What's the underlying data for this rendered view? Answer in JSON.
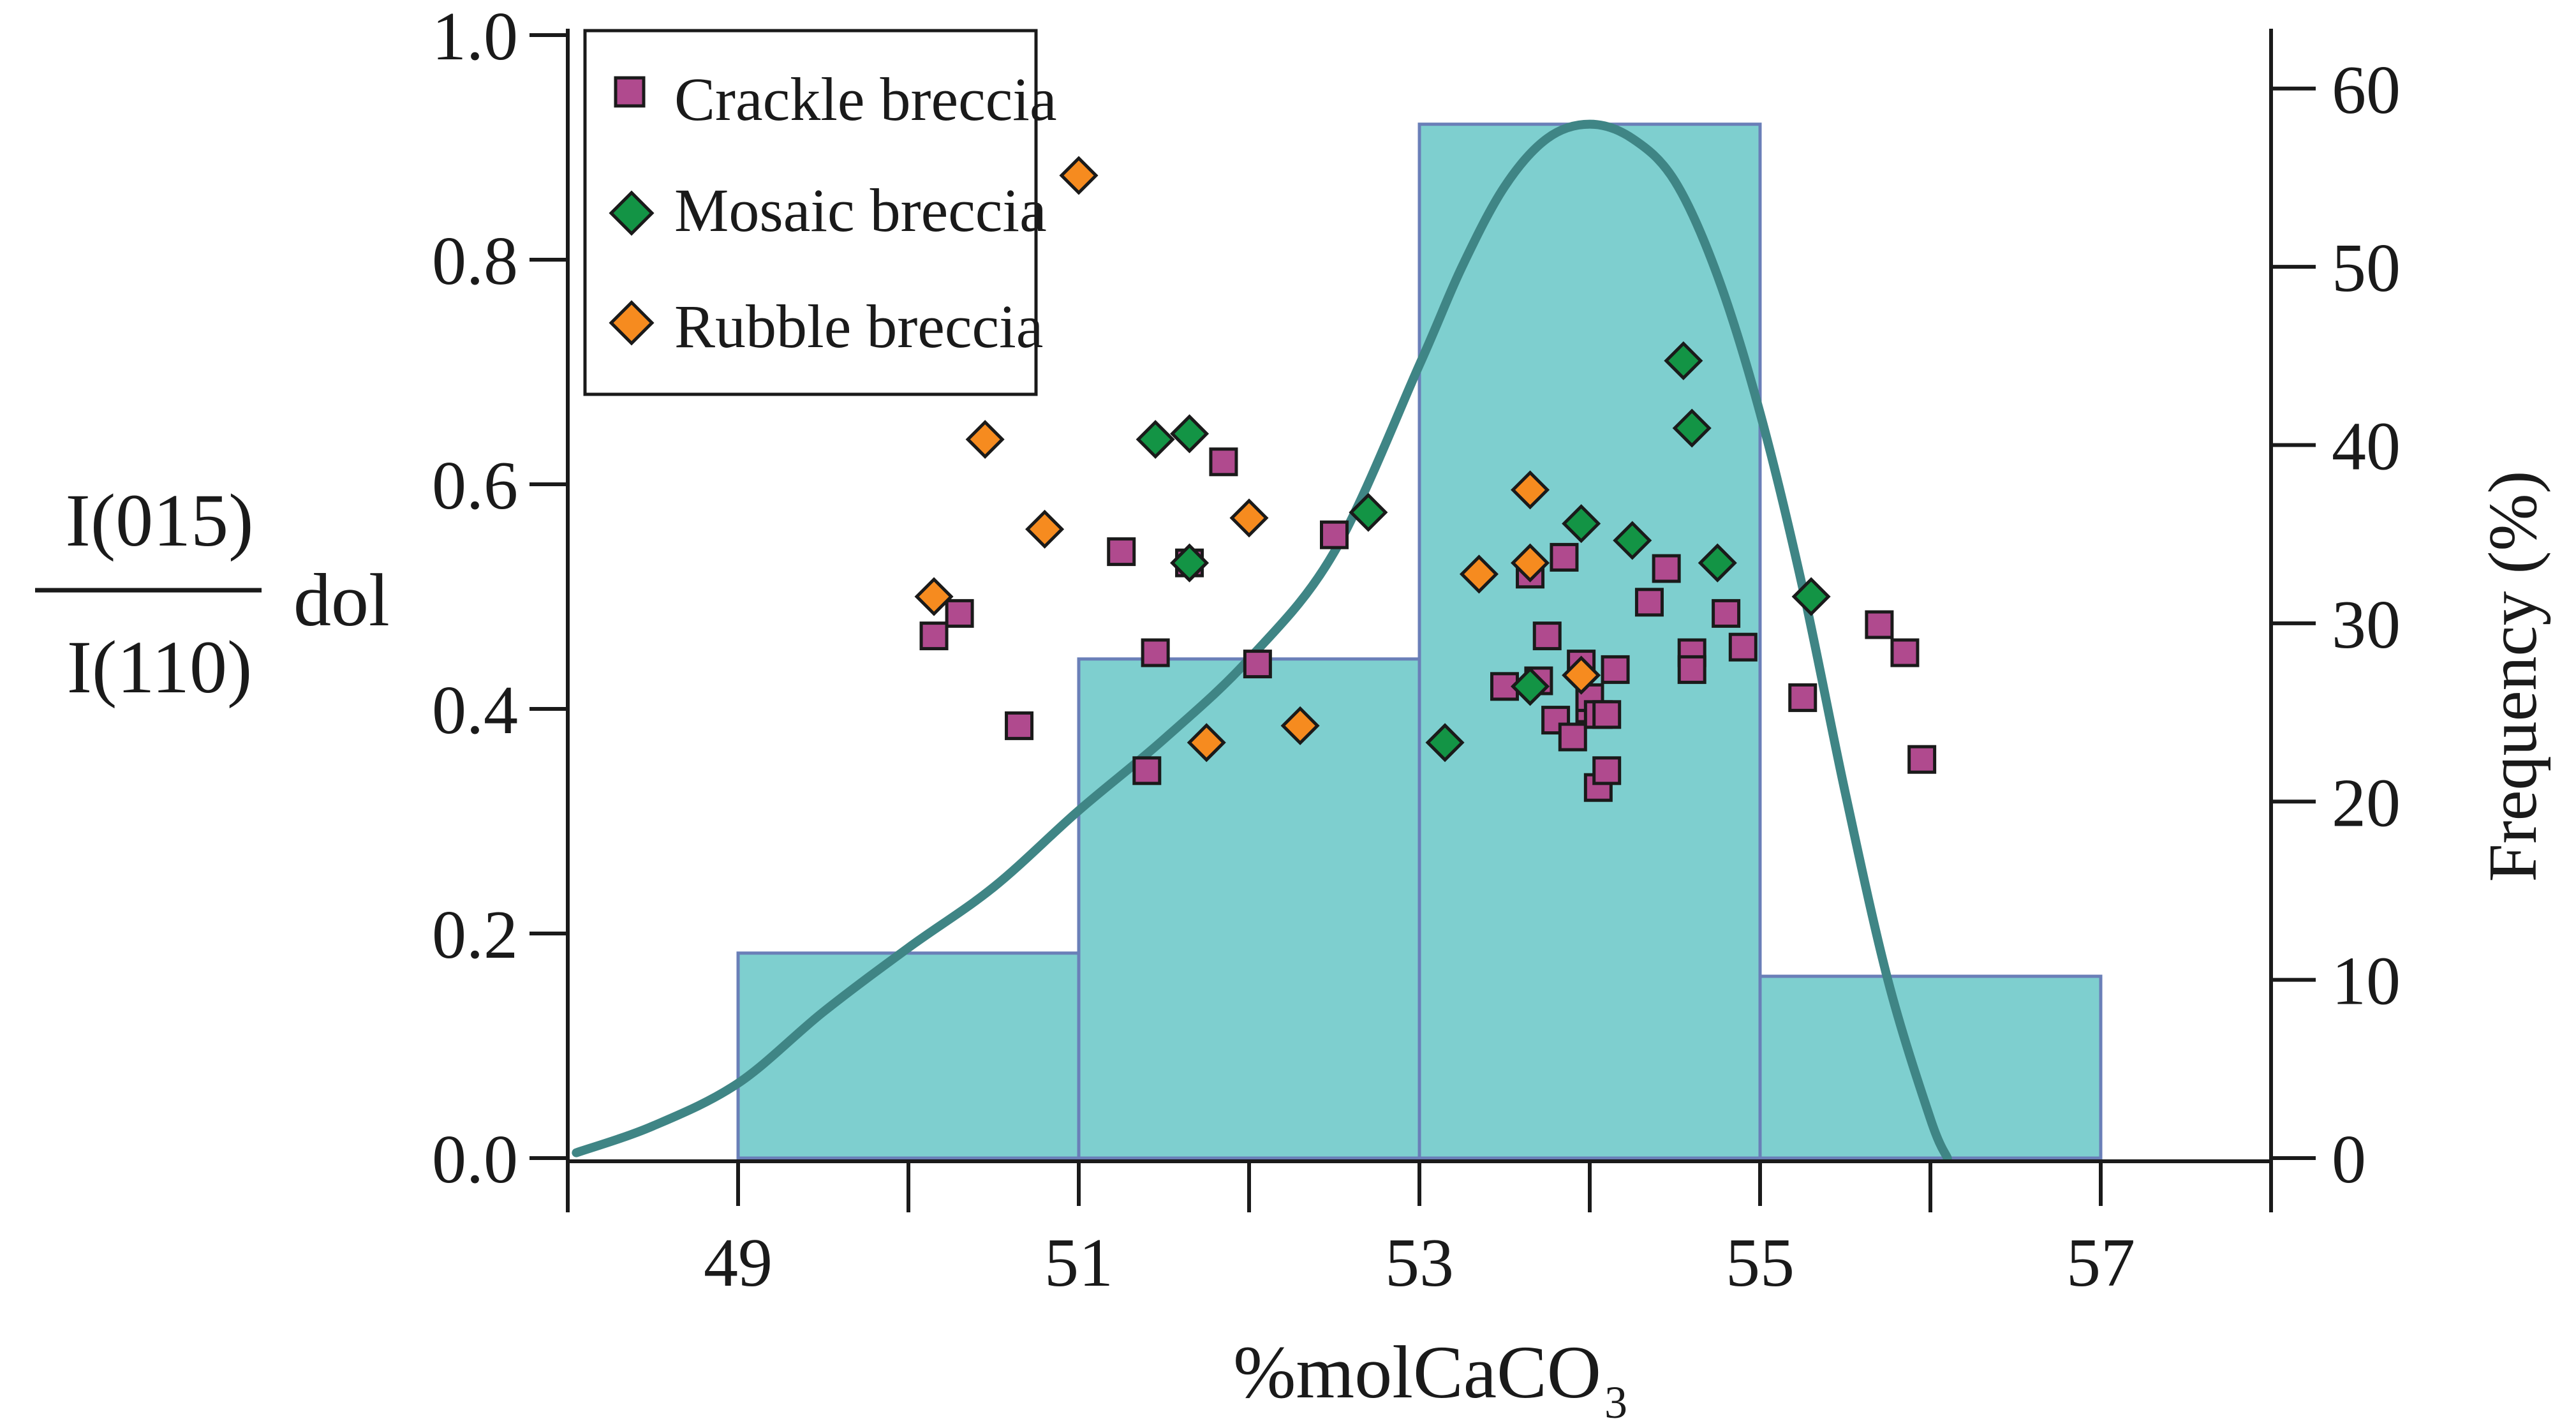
{
  "chart_data": {
    "type": "histogram+scatter",
    "xlabel": "%molCaCO",
    "xlabel_subscript": "3",
    "xlim": [
      48,
      58
    ],
    "x_ticks": [
      49,
      51,
      53,
      55,
      57
    ],
    "x_tick_labels": [
      "49",
      "51",
      "53",
      "55",
      "57"
    ],
    "ylabel_left": {
      "numerator": "I(015)",
      "denominator": "I(110)",
      "suffix": "dol"
    },
    "ylim_left": [
      0,
      1
    ],
    "y_ticks_left": [
      0.0,
      0.2,
      0.4,
      0.6,
      0.8,
      1.0
    ],
    "y_tick_labels_left": [
      "0.0",
      "0.2",
      "0.4",
      "0.6",
      "0.8",
      "1.0"
    ],
    "ylabel_right": "Frequency (%)",
    "ylim_right": [
      0,
      63
    ],
    "y_ticks_right": [
      0,
      10,
      20,
      30,
      40,
      50,
      60
    ],
    "y_tick_labels_right": [
      "0",
      "10",
      "20",
      "30",
      "40",
      "50",
      "60"
    ],
    "histogram": {
      "bins": [
        [
          49,
          51
        ],
        [
          51,
          53
        ],
        [
          53,
          55
        ],
        [
          55,
          57
        ]
      ],
      "frequency": [
        11.5,
        28,
        58,
        10.2
      ],
      "color": "#7ecfcf",
      "edge_color": "#6a7fb8"
    },
    "curve": {
      "color": "#3f8585",
      "x": [
        48.05,
        48.5,
        49,
        49.5,
        50,
        50.5,
        51,
        51.5,
        52,
        52.5,
        53,
        53.25,
        53.5,
        53.75,
        54,
        54.25,
        54.5,
        54.75,
        55,
        55.25,
        55.5,
        55.75,
        56,
        56.1
      ],
      "y": [
        0.3,
        1.8,
        4.2,
        8.2,
        11.8,
        15.2,
        19.5,
        23.5,
        28,
        34,
        44.5,
        50,
        54.5,
        57.2,
        58,
        57.2,
        54.8,
        49.5,
        41.8,
        32,
        20.5,
        10,
        2.2,
        0
      ]
    },
    "legend": {
      "position": "top-left",
      "entries": [
        {
          "label": "Crackle breccia",
          "marker": "square",
          "color": "#b04a8e"
        },
        {
          "label": "Mosaic breccia",
          "marker": "diamond",
          "color": "#139445"
        },
        {
          "label": "Rubble breccia",
          "marker": "diamond",
          "color": "#f68b1f"
        }
      ]
    },
    "series": [
      {
        "name": "Crackle breccia",
        "marker": "square",
        "color": "#b04a8e",
        "x": [
          50.15,
          50.3,
          50.65,
          51.25,
          51.4,
          51.45,
          51.65,
          51.85,
          52.05,
          52.5,
          53.5,
          53.65,
          53.7,
          53.75,
          53.8,
          53.85,
          53.9,
          53.95,
          54.0,
          54.05,
          54.1,
          54.0,
          54.05,
          54.1,
          54.15,
          54.35,
          54.45,
          54.6,
          54.6,
          54.8,
          54.9,
          55.25,
          55.7,
          55.85,
          55.95
        ],
        "y": [
          0.465,
          0.485,
          0.385,
          0.54,
          0.345,
          0.45,
          0.53,
          0.62,
          0.44,
          0.555,
          0.42,
          0.52,
          0.425,
          0.465,
          0.39,
          0.535,
          0.375,
          0.44,
          0.4,
          0.33,
          0.345,
          0.41,
          0.395,
          0.395,
          0.435,
          0.495,
          0.525,
          0.45,
          0.435,
          0.485,
          0.455,
          0.41,
          0.475,
          0.45,
          0.355
        ]
      },
      {
        "name": "Mosaic breccia",
        "marker": "diamond",
        "color": "#139445",
        "x": [
          51.45,
          51.65,
          51.65,
          52.7,
          53.15,
          53.65,
          53.95,
          54.25,
          54.55,
          54.6,
          54.75,
          55.3
        ],
        "y": [
          0.64,
          0.645,
          0.53,
          0.575,
          0.37,
          0.42,
          0.565,
          0.55,
          0.71,
          0.65,
          0.53,
          0.5
        ]
      },
      {
        "name": "Rubble breccia",
        "marker": "diamond",
        "color": "#f68b1f",
        "x": [
          50.15,
          50.45,
          50.8,
          51.0,
          51.75,
          52.0,
          52.3,
          53.35,
          53.65,
          53.65,
          53.95
        ],
        "y": [
          0.5,
          0.64,
          0.56,
          0.875,
          0.37,
          0.57,
          0.385,
          0.52,
          0.595,
          0.53,
          0.43
        ]
      }
    ]
  }
}
